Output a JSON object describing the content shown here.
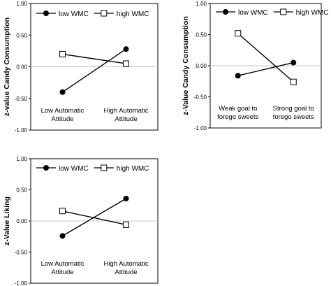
{
  "chart_data": [
    {
      "type": "line",
      "ylabel": "z-value Candy Consumption",
      "ylim": [
        -1.0,
        1.0
      ],
      "yticks": [
        1.0,
        0.5,
        0.0,
        -0.5,
        -1.0
      ],
      "ytick_labels": [
        "1.00",
        "0.50",
        "0.00",
        "-0.50",
        "-1.00"
      ],
      "categories": [
        [
          "Low Automatic",
          "Attitude"
        ],
        [
          "High Automatic",
          "Attitude"
        ]
      ],
      "legend_position": "top",
      "grid": false,
      "zero_line": true,
      "series": [
        {
          "name": "low WMC",
          "marker": "filled-circle",
          "values": [
            -0.4,
            0.28
          ]
        },
        {
          "name": "high WMC",
          "marker": "open-square",
          "values": [
            0.2,
            0.05
          ]
        }
      ]
    },
    {
      "type": "line",
      "ylabel": "z-Value Candy Consumption",
      "ylim": [
        -1.0,
        1.0
      ],
      "yticks": [
        1.0,
        0.5,
        0.0,
        -0.5,
        -1.0
      ],
      "ytick_labels": [
        "1.00",
        "0.50",
        "0.00",
        "-0.50",
        "-1.00"
      ],
      "categories": [
        [
          "Weak goal to",
          "forego sweets"
        ],
        [
          "Strong goal to",
          "forego sweets"
        ]
      ],
      "legend_position": "top",
      "grid": false,
      "zero_line": true,
      "series": [
        {
          "name": "low WMC",
          "marker": "filled-circle",
          "values": [
            -0.16,
            0.05
          ]
        },
        {
          "name": "high WMC",
          "marker": "open-square",
          "values": [
            0.52,
            -0.26
          ]
        }
      ]
    },
    {
      "type": "line",
      "ylabel": "z-Value Liking",
      "ylim": [
        -1.0,
        1.0
      ],
      "yticks": [
        1.0,
        0.5,
        0.0,
        -0.5,
        -1.0
      ],
      "ytick_labels": [
        "1.00",
        "0.50",
        "0.00",
        "-0.50",
        "-1.00"
      ],
      "categories": [
        [
          "Low Automatic",
          "Attitude"
        ],
        [
          "High Automatic",
          "Attitude"
        ]
      ],
      "legend_position": "top",
      "grid": false,
      "zero_line": true,
      "series": [
        {
          "name": "low WMC",
          "marker": "filled-circle",
          "values": [
            -0.24,
            0.36
          ]
        },
        {
          "name": "high WMC",
          "marker": "open-square",
          "values": [
            0.16,
            -0.06
          ]
        }
      ]
    }
  ]
}
